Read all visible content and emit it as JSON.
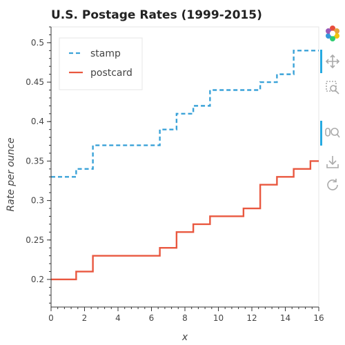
{
  "chart_data": {
    "type": "line",
    "step": "after",
    "title": "U.S. Postage Rates (1999-2015)",
    "xlabel": "x",
    "ylabel": "Rate per ounce",
    "xlim": [
      0,
      16
    ],
    "ylim": [
      0.165,
      0.52
    ],
    "x_ticks": [
      0,
      2,
      4,
      6,
      8,
      10,
      12,
      14,
      16
    ],
    "y_ticks": [
      0.2,
      0.25,
      0.3,
      0.35,
      0.4,
      0.45,
      0.5
    ],
    "x_tick_labels": [
      "0",
      "2",
      "4",
      "6",
      "8",
      "10",
      "12",
      "14",
      "16"
    ],
    "y_tick_labels": [
      "0.2",
      "0.25",
      "0.3",
      "0.35",
      "0.4",
      "0.45",
      "0.5"
    ],
    "legend_position": "top-left",
    "grid": false,
    "x": [
      0,
      1.5,
      2.5,
      6.5,
      7.5,
      8.5,
      9.5,
      11.5,
      12.5,
      13.5,
      14.5,
      15.5,
      16
    ],
    "series": [
      {
        "name": "stamp",
        "color": "#3aa2d8",
        "dash": "dashed",
        "values": [
          0.33,
          0.34,
          0.37,
          0.39,
          0.41,
          0.42,
          0.44,
          0.44,
          0.45,
          0.46,
          0.49,
          0.49,
          0.49
        ]
      },
      {
        "name": "postcard",
        "color": "#e9573f",
        "dash": "solid",
        "values": [
          0.2,
          0.21,
          0.23,
          0.24,
          0.26,
          0.27,
          0.28,
          0.29,
          0.32,
          0.33,
          0.34,
          0.35,
          0.35
        ]
      }
    ]
  },
  "toolbar": {
    "tools": [
      {
        "icon": "bokeh-logo-icon",
        "color": "#e6a23c"
      },
      {
        "icon": "pan-icon",
        "active": true
      },
      {
        "icon": "box-zoom-icon",
        "active": false
      },
      {
        "icon": "wheel-zoom-icon",
        "active": true
      },
      {
        "icon": "save-icon",
        "active": false
      },
      {
        "icon": "reset-icon",
        "active": false
      }
    ],
    "accent_color": "#26aae1",
    "icon_color": "#aaaaaa"
  }
}
